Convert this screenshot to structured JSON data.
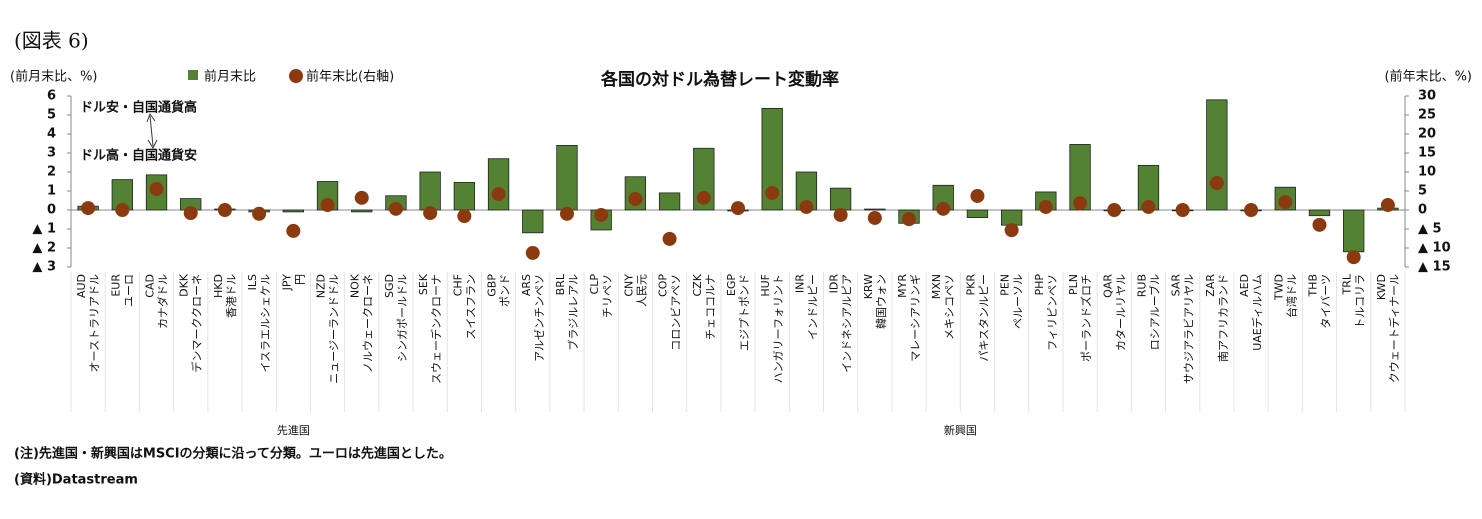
{
  "header": "(図表 6)",
  "chart_data": {
    "type": "bar",
    "title": "各国の対ドル為替レート変動率",
    "y_label": "(前月末比、%)",
    "y2_label": "(前年末比、%)",
    "annotations": [
      "ドル安・自国通貨高",
      "ドル高・自国通貨安"
    ],
    "categories": [
      "AUD",
      "EUR",
      "CAD",
      "DKK",
      "HKD",
      "ILS",
      "JPY",
      "NZD",
      "NOK",
      "SGD",
      "SEK",
      "CHF",
      "GBP",
      "ARS",
      "BRL",
      "CLP",
      "CNY",
      "COP",
      "CZK",
      "EGP",
      "HUF",
      "INR",
      "IDR",
      "KRW",
      "MYR",
      "MXN",
      "PKR",
      "PEN",
      "PHP",
      "PLN",
      "QAR",
      "RUB",
      "SAR",
      "ZAR",
      "AED",
      "TWD",
      "THB",
      "TRL",
      "KWD"
    ],
    "category_names": [
      "オーストラリアドル",
      "ユーロ",
      "カナダドル",
      "デンマーククローネ",
      "香港ドル",
      "イスラエルシェケル",
      "円",
      "ニュージーランドドル",
      "ノルウェークローネ",
      "シンガポールドル",
      "スウェーデンクローナ",
      "スイスフラン",
      "ポンド",
      "アルゼンチンペソ",
      "ブラジルレアル",
      "チリペソ",
      "人民元",
      "コロンビアペソ",
      "チェココルナ",
      "エジプトポンド",
      "ハンガリーフォリント",
      "インドルピー",
      "インドネシアルピア",
      "韓国ウォン",
      "マレーシアリンギ",
      "メキシコペソ",
      "パキスタンルピー",
      "ペルーソル",
      "フィリピンペソ",
      "ポーランドズロチ",
      "カタールリヤル",
      "ロシアルーブル",
      "サウジアラビアリヤル",
      "南アフリカランド",
      "UAEディルハム",
      "台湾ドル",
      "タイバーツ",
      "トルコリラ",
      "クウェートディナール"
    ],
    "groups": [
      {
        "label": "先進国",
        "count": 13
      },
      {
        "label": "新興国",
        "count": 26
      }
    ],
    "series": [
      {
        "name": "前月末比",
        "color": "#548235",
        "mark": "bar",
        "axis": "y",
        "values": [
          0.2,
          1.6,
          1.85,
          0.6,
          0.05,
          -0.1,
          -0.1,
          1.5,
          -0.1,
          0.75,
          2.0,
          1.45,
          2.7,
          -1.2,
          3.4,
          -1.05,
          1.75,
          0.9,
          3.25,
          -0.05,
          5.35,
          2.0,
          1.15,
          0.05,
          -0.7,
          1.3,
          -0.4,
          -0.8,
          0.95,
          3.45,
          0,
          2.35,
          0,
          5.8,
          0,
          1.2,
          -0.3,
          -2.2,
          0.1
        ]
      },
      {
        "name": "前年末比(右軸)",
        "color": "#8b3a10",
        "mark": "dot",
        "axis": "y2",
        "values": [
          0.5,
          0,
          5.5,
          -0.8,
          0,
          -1,
          -5.5,
          1.3,
          3.2,
          0.3,
          -0.8,
          -1.6,
          4.2,
          -11.3,
          -1,
          -1.3,
          2.9,
          -7.6,
          3.2,
          0.5,
          4.5,
          0.8,
          -1.3,
          -2.1,
          -2.4,
          0.3,
          3.7,
          -5.3,
          0.8,
          1.8,
          0,
          0.8,
          0,
          7.1,
          0,
          2.1,
          -3.9,
          -12.4,
          1.3
        ]
      }
    ],
    "ylim": [
      -3,
      6
    ],
    "yticks": [
      {
        "value": -3,
        "label": "▲ 3"
      },
      {
        "value": -2,
        "label": "▲ 2"
      },
      {
        "value": -1,
        "label": "▲ 1"
      },
      0,
      1,
      2,
      3,
      4,
      5,
      6
    ],
    "y2lim": [
      -15,
      30
    ],
    "y2ticks": [
      {
        "value": -15,
        "label": "▲ 15"
      },
      {
        "value": -10,
        "label": "▲ 10"
      },
      {
        "value": -5,
        "label": "▲ 5"
      },
      0,
      5,
      10,
      15,
      20,
      25,
      30
    ]
  },
  "notes": [
    "(注)先進国・新興国はMSCIの分類に沿って分類。ユーロは先進国とした。",
    "(資料)Datastream"
  ]
}
